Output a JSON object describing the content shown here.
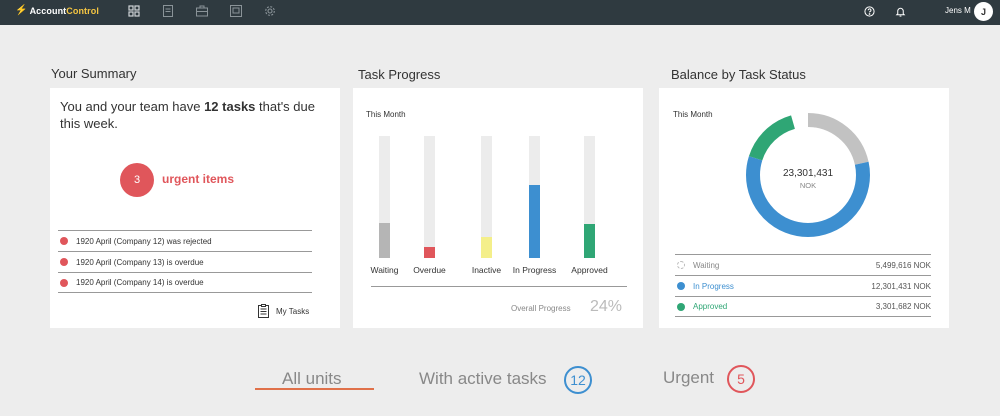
{
  "app": {
    "logo_part1": "Account",
    "logo_part2": "Control",
    "user_name": "Jens M",
    "avatar_initial": "J"
  },
  "nav_icons": [
    "dashboard-icon",
    "document-icon",
    "briefcase-icon",
    "monitor-icon",
    "gear-icon"
  ],
  "topbar_right_icons": [
    "help-icon",
    "bell-icon"
  ],
  "summary": {
    "title": "Your Summary",
    "text_prefix": "You and your team have ",
    "text_bold": "12 tasks",
    "text_suffix": " that's due this week.",
    "urgent_count": "3",
    "urgent_label": "urgent items",
    "urgent_items": [
      "1920 April (Company 12) was rejected",
      "1920 April (Company 13) is overdue",
      "1920 April (Company 14) is overdue"
    ],
    "my_tasks_label": "My Tasks"
  },
  "task_progress": {
    "title": "Task Progress",
    "period": "This Month",
    "overall_label": "Overall Progress",
    "overall_value": "24%"
  },
  "chart_data": {
    "type": "bar",
    "categories": [
      "Waiting",
      "Overdue",
      "Inactive",
      "In Progress",
      "Approved"
    ],
    "values": [
      29,
      9,
      17,
      60,
      28
    ],
    "ylim": [
      0,
      100
    ],
    "colors": [
      "#b5b5b5",
      "#e0565b",
      "#f4ef8a",
      "#3d8fd0",
      "#2fa675"
    ],
    "grid": false
  },
  "balance": {
    "title": "Balance by Task Status",
    "period": "This Month",
    "total_value": "23,301,431",
    "currency": "NOK",
    "donut": {
      "type": "pie",
      "values": [
        5499616,
        12301431,
        3301682
      ],
      "colors": [
        "#c2c2c2",
        "#3d8fd0",
        "#2fa675"
      ]
    },
    "legend": [
      {
        "name": "Waiting",
        "amount": "5,499,616 NOK",
        "color": "#c2c2c2",
        "name_color": "#888888"
      },
      {
        "name": "In Progress",
        "amount": "12,301,431 NOK",
        "color": "#3d8fd0",
        "name_color": "#3d8fd0"
      },
      {
        "name": "Approved",
        "amount": "3,301,682 NOK",
        "color": "#2fa675",
        "name_color": "#2fa675"
      }
    ]
  },
  "tabs": {
    "all_units": "All units",
    "active_tasks": "With active tasks",
    "active_count": "12",
    "active_color": "#3d8fd0",
    "urgent": "Urgent",
    "urgent_count": "5",
    "urgent_color": "#e0565b",
    "underline_color": "#e0714a"
  }
}
